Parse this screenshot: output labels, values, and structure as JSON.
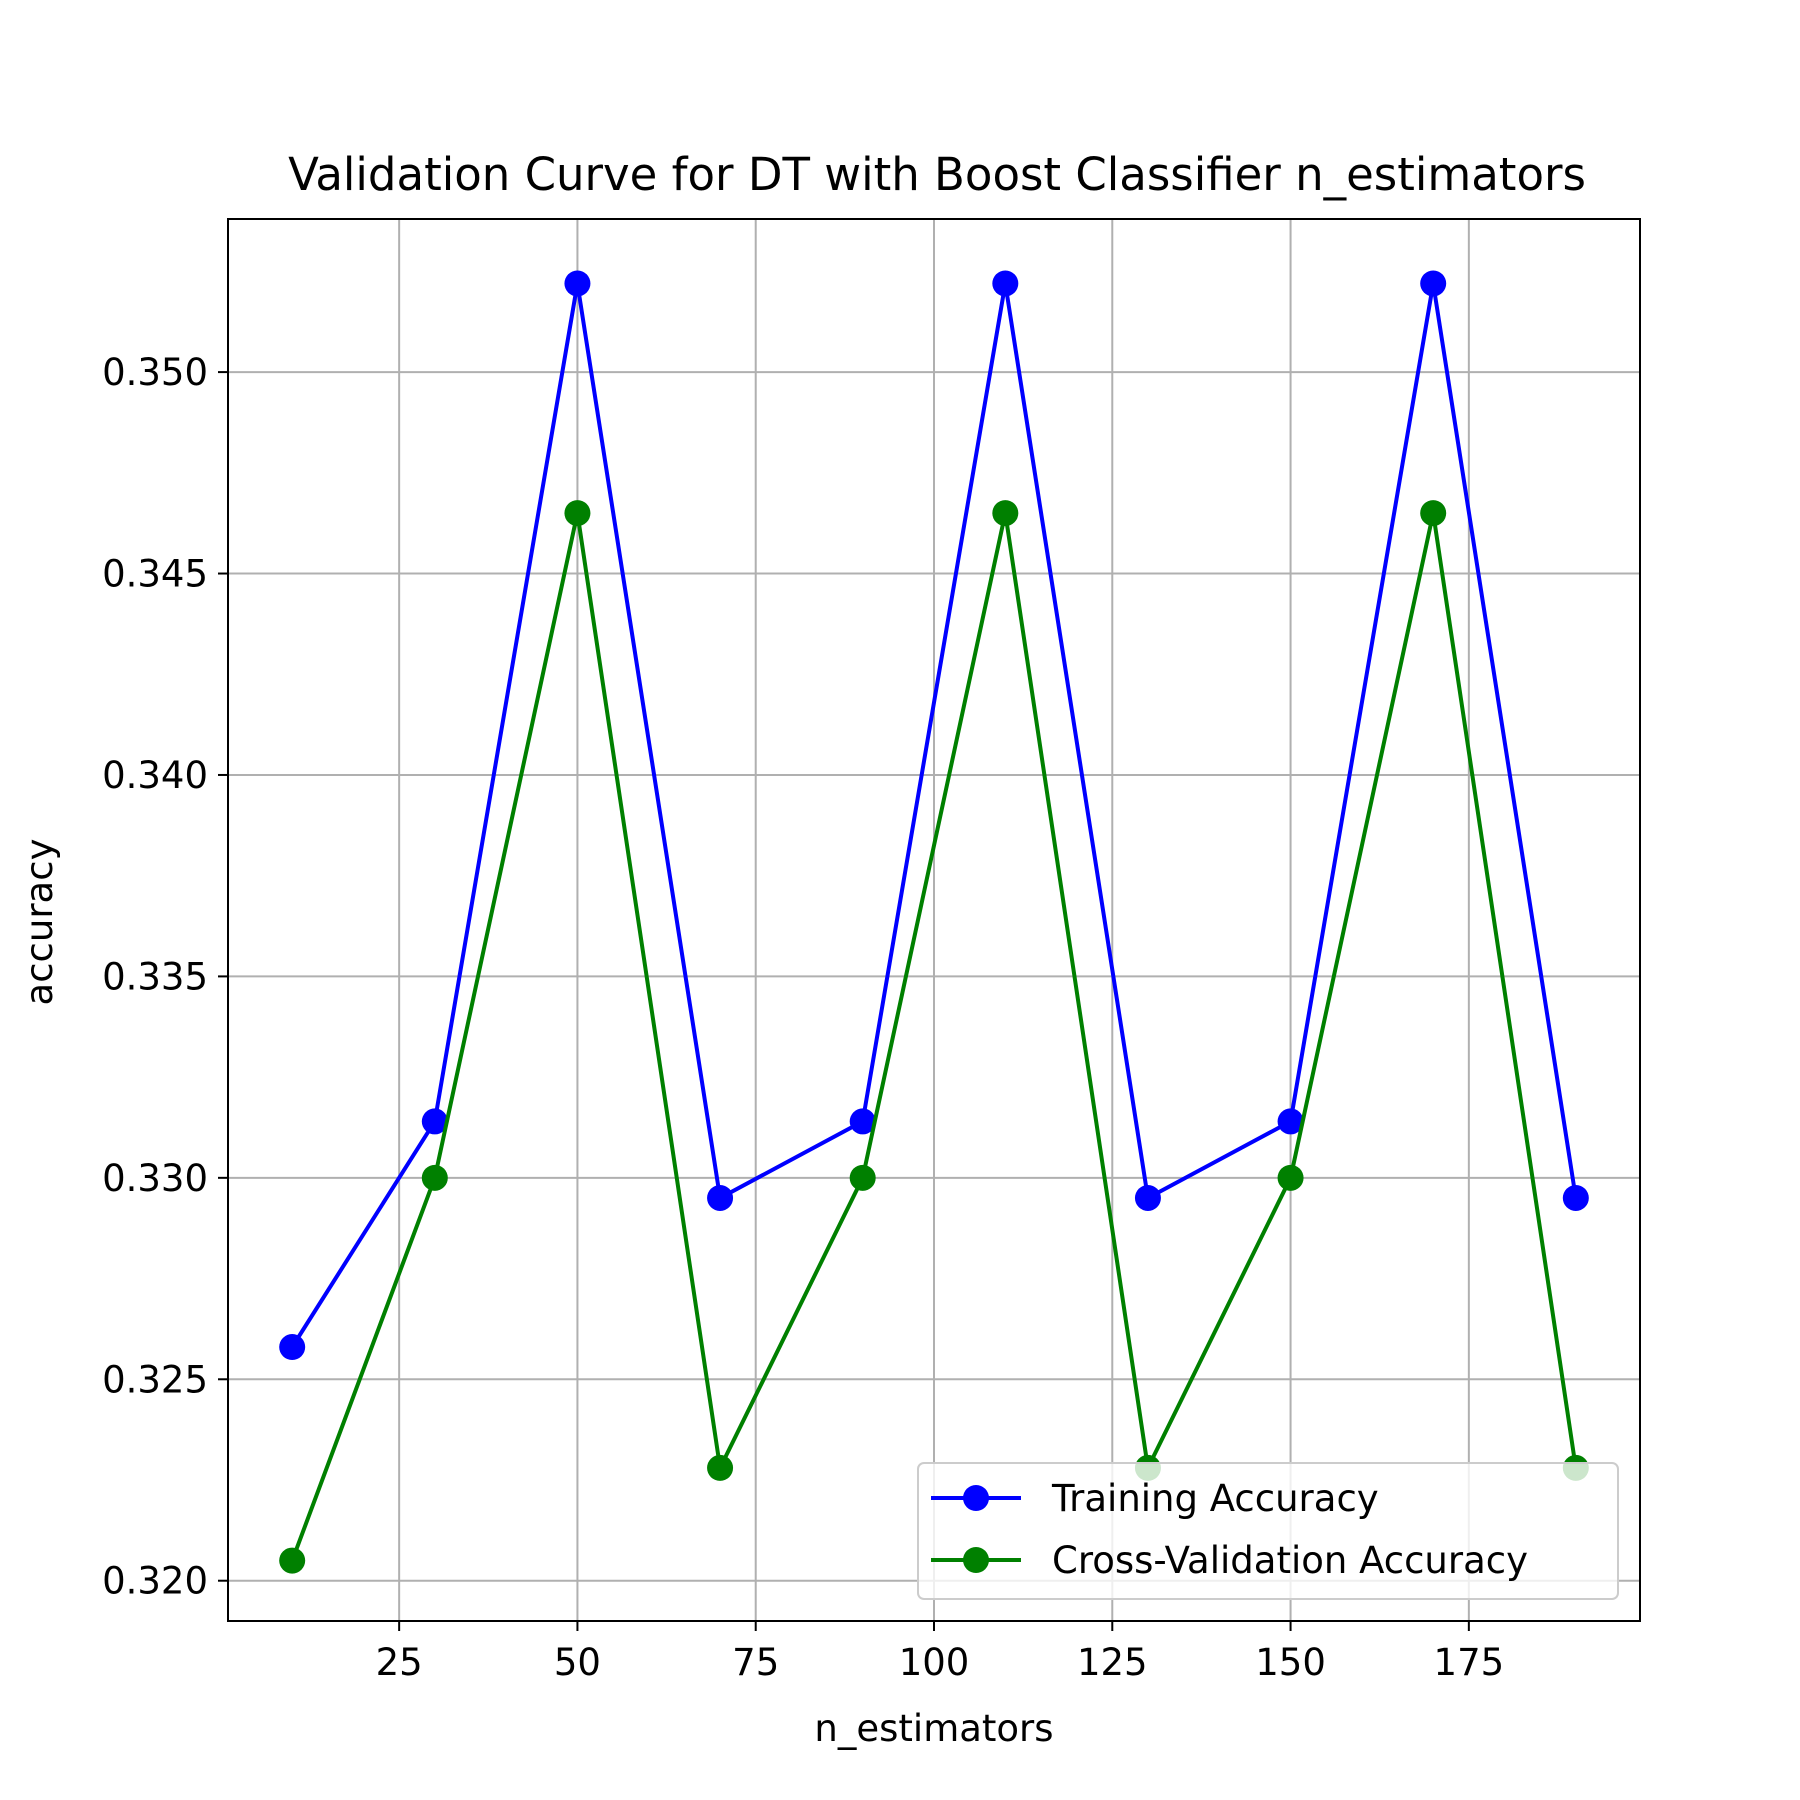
{
  "chart_data": {
    "type": "line",
    "title": "Validation Curve for DT with Boost Classifier n_estimators",
    "xlabel": "n_estimators",
    "ylabel": "accuracy",
    "x": [
      10,
      30,
      50,
      70,
      90,
      110,
      130,
      150,
      170,
      190
    ],
    "series": [
      {
        "name": "Training Accuracy",
        "color": "#0000ff",
        "marker": "circle",
        "values": [
          0.3258,
          0.3314,
          0.3522,
          0.3295,
          0.3314,
          0.3522,
          0.3295,
          0.3314,
          0.3522,
          0.3295
        ]
      },
      {
        "name": "Cross-Validation Accuracy",
        "color": "#008000",
        "marker": "circle",
        "values": [
          0.3205,
          0.33,
          0.3465,
          0.3228,
          0.33,
          0.3465,
          0.3228,
          0.33,
          0.3465,
          0.3228
        ]
      }
    ],
    "xlim": [
      1,
      199
    ],
    "ylim": [
      0.319,
      0.3538
    ],
    "xticks": [
      25,
      50,
      75,
      100,
      125,
      150,
      175
    ],
    "xtick_labels": [
      "25",
      "50",
      "75",
      "100",
      "125",
      "150",
      "175"
    ],
    "yticks": [
      0.32,
      0.325,
      0.33,
      0.335,
      0.34,
      0.345,
      0.35
    ],
    "ytick_labels": [
      "0.320",
      "0.325",
      "0.330",
      "0.335",
      "0.340",
      "0.345",
      "0.350"
    ],
    "grid": true,
    "legend_position": "lower-right"
  }
}
